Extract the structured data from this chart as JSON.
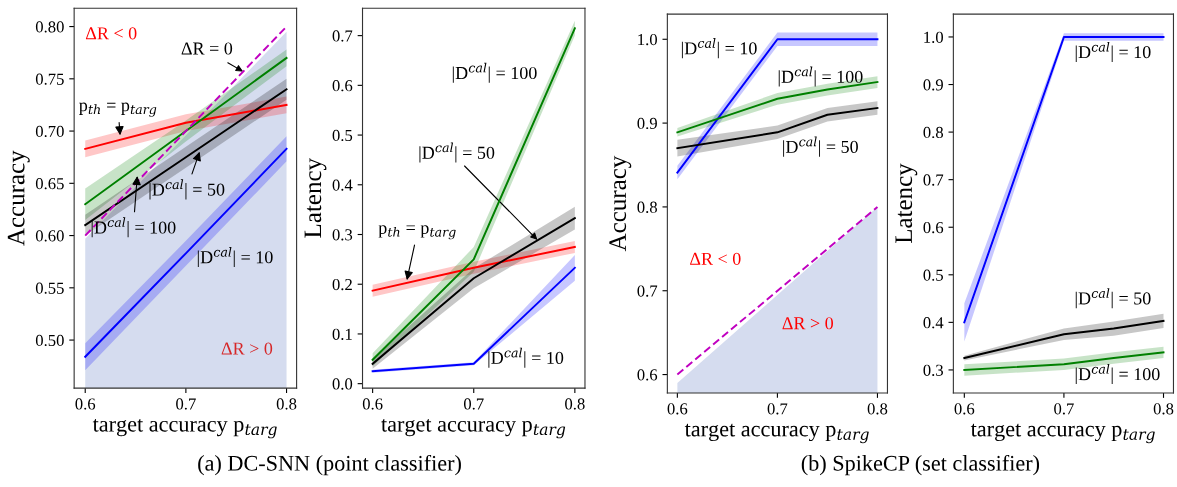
{
  "chart_data": [
    {
      "type": "line",
      "ylabel": "Accuracy",
      "xlabel": "target accuracy p$_{targ}$",
      "xlim": [
        0.589,
        0.81
      ],
      "xticks": [
        0.6,
        0.7,
        0.8
      ],
      "ylim": [
        0.454,
        0.8175
      ],
      "yticks": [
        {
          "value": 0.5,
          "label": "0.50"
        },
        {
          "value": 0.55,
          "label": "0.55"
        },
        {
          "value": 0.6,
          "label": "0.60"
        },
        {
          "value": 0.65,
          "label": "0.65"
        },
        {
          "value": 0.7,
          "label": "0.70"
        },
        {
          "value": 0.75,
          "label": "0.75"
        },
        {
          "value": 0.8,
          "label": "0.80"
        }
      ],
      "grid": false,
      "legend": false,
      "series": [
        {
          "type": "area",
          "color": "#d5dcef",
          "x": [
            0.6,
            0.8
          ],
          "values": [
            0.597,
            0.795
          ]
        },
        {
          "color": "#ff0000",
          "x": [
            0.6,
            0.7,
            0.8
          ],
          "values": [
            0.683,
            0.708,
            0.725
          ],
          "lower": [
            0.675,
            0.7,
            0.717
          ],
          "upper": [
            0.691,
            0.716,
            0.733
          ]
        },
        {
          "color": "#008000",
          "x": [
            0.6,
            0.7,
            0.8
          ],
          "values": [
            0.63,
            0.7,
            0.77
          ],
          "lower": [
            0.615,
            0.69,
            0.762
          ],
          "upper": [
            0.645,
            0.71,
            0.778
          ]
        },
        {
          "color": "#000000",
          "x": [
            0.6,
            0.7,
            0.8
          ],
          "values": [
            0.61,
            0.675,
            0.74
          ],
          "lower": [
            0.6,
            0.665,
            0.73
          ],
          "upper": [
            0.62,
            0.685,
            0.75
          ]
        },
        {
          "color": "#0000ff",
          "x": [
            0.6,
            0.7,
            0.8
          ],
          "values": [
            0.484,
            0.583,
            0.683
          ],
          "lower": [
            0.471,
            0.571,
            0.671
          ],
          "upper": [
            0.497,
            0.595,
            0.695
          ]
        },
        {
          "color": "#c000c0",
          "line_style": "dashed",
          "x": [
            0.6,
            0.8
          ],
          "values": [
            0.6,
            0.8
          ]
        }
      ],
      "annotations": [
        "ΔR < 0",
        "ΔR = 0",
        {
          "text": "p$_{th}$ = p$_{targ}$",
          "x": 0.635,
          "y": 0.692
        },
        {
          "text": "|D$^{cal}$| = 50",
          "x": 0.715,
          "y": 0.684
        },
        {
          "text": "|D$^{cal}$| = 100",
          "x": 0.652,
          "y": 0.661
        },
        "|D$^{cal}$| = 10",
        "ΔR > 0",
        "(a) DC-SNN (point classifier)"
      ]
    },
    {
      "type": "line",
      "ylabel": "Latency",
      "xlabel": "target accuracy p$_{targ}$",
      "xlim": [
        0.59,
        0.81
      ],
      "xticks": [
        0.6,
        0.7,
        0.8
      ],
      "ylim": [
        -0.009,
        0.755
      ],
      "yticks": [
        {
          "value": 0.0,
          "label": "0.0"
        },
        0.1,
        0.2,
        0.3,
        0.4,
        0.5,
        0.6,
        0.7
      ],
      "grid": false,
      "legend": false,
      "series": [
        {
          "color": "#ff0000",
          "x": [
            0.6,
            0.7,
            0.8
          ],
          "values": [
            0.187,
            0.233,
            0.275
          ],
          "lower": [
            0.175,
            0.221,
            0.263
          ],
          "upper": [
            0.199,
            0.245,
            0.287
          ]
        },
        {
          "color": "#008000",
          "x": [
            0.6,
            0.7,
            0.8
          ],
          "values": [
            0.048,
            0.25,
            0.715
          ],
          "lower": [
            0.035,
            0.225,
            0.7
          ],
          "upper": [
            0.061,
            0.275,
            0.73
          ]
        },
        {
          "color": "#000000",
          "x": [
            0.6,
            0.7,
            0.8
          ],
          "values": [
            0.04,
            0.212,
            0.333
          ],
          "lower": [
            0.03,
            0.192,
            0.31
          ],
          "upper": [
            0.05,
            0.232,
            0.356
          ]
        },
        {
          "color": "#0000ff",
          "x": [
            0.6,
            0.7,
            0.8
          ],
          "values": [
            0.025,
            0.04,
            0.233
          ],
          "lower": [
            0.022,
            0.037,
            0.207
          ],
          "upper": [
            0.028,
            0.043,
            0.259
          ]
        }
      ],
      "annotations": [
        "|D$^{cal}$| = 100",
        "|D$^{cal}$| = 50",
        {
          "text": "p$_{th}$ = p$_{targ}$",
          "x": 0.633,
          "y": 0.2
        },
        "|D$^{cal}$| = 10"
      ]
    },
    {
      "type": "line",
      "ylabel": "Accuracy",
      "xlabel": "target accuracy p$_{targ}$",
      "xlim": [
        0.59,
        0.81
      ],
      "xticks": [
        0.6,
        0.7,
        0.8
      ],
      "ylim": [
        0.578,
        1.03
      ],
      "yticks": [
        0.6,
        0.7,
        0.8,
        0.9,
        {
          "value": 1.0,
          "label": "1.0"
        }
      ],
      "grid": false,
      "legend": false,
      "series": [
        {
          "type": "area",
          "color": "#d5dcef",
          "x": [
            0.6,
            0.8
          ],
          "values": [
            0.59,
            0.8
          ]
        },
        {
          "color": "#c000c0",
          "line_style": "dashed",
          "x": [
            0.6,
            0.8
          ],
          "values": [
            0.6,
            0.8
          ]
        },
        {
          "color": "#0000ff",
          "x": [
            0.6,
            0.7,
            0.75,
            0.8
          ],
          "values": [
            0.841,
            1.0,
            1.0,
            1.0
          ],
          "lower": [
            0.833,
            0.992,
            0.992,
            0.992
          ],
          "upper": [
            0.849,
            1.008,
            1.008,
            1.008
          ]
        },
        {
          "color": "#008000",
          "x": [
            0.6,
            0.7,
            0.75,
            0.8
          ],
          "values": [
            0.889,
            0.929,
            0.94,
            0.949
          ],
          "lower": [
            0.884,
            0.922,
            0.933,
            0.942
          ],
          "upper": [
            0.894,
            0.936,
            0.947,
            0.956
          ]
        },
        {
          "color": "#000000",
          "x": [
            0.6,
            0.7,
            0.75,
            0.8
          ],
          "values": [
            0.87,
            0.889,
            0.91,
            0.918
          ],
          "lower": [
            0.86,
            0.881,
            0.902,
            0.91
          ],
          "upper": [
            0.88,
            0.897,
            0.918,
            0.926
          ]
        }
      ],
      "annotations": [
        "|D$^{cal}$| = 10",
        "|D$^{cal}$| = 100",
        "|D$^{cal}$| = 50",
        "ΔR < 0",
        "ΔR > 0",
        "(b) SpikeCP (set classifier)"
      ]
    },
    {
      "type": "line",
      "ylabel": "Latency",
      "xlabel": "target accuracy p$_{targ}$",
      "xlim": [
        0.589,
        0.81
      ],
      "xticks": [
        0.6,
        0.7,
        0.8
      ],
      "ylim": [
        0.2515,
        1.048
      ],
      "yticks": [
        0.3,
        0.4,
        0.5,
        0.6,
        0.7,
        0.8,
        0.9,
        {
          "value": 1.0,
          "label": "1.0"
        }
      ],
      "grid": false,
      "legend": false,
      "series": [
        {
          "color": "#0000ff",
          "x": [
            0.6,
            0.7,
            0.75,
            0.8
          ],
          "values": [
            0.4,
            1.0,
            1.0,
            1.0
          ],
          "lower": [
            0.36,
            0.992,
            0.992,
            0.992
          ],
          "upper": [
            0.44,
            1.008,
            1.008,
            1.008
          ]
        },
        {
          "color": "#000000",
          "x": [
            0.6,
            0.7,
            0.75,
            0.8
          ],
          "values": [
            0.325,
            0.375,
            0.387,
            0.403
          ],
          "lower": [
            0.32,
            0.363,
            0.372,
            0.388
          ],
          "upper": [
            0.33,
            0.387,
            0.402,
            0.418
          ]
        },
        {
          "color": "#008000",
          "x": [
            0.6,
            0.7,
            0.75,
            0.8
          ],
          "values": [
            0.3,
            0.312,
            0.325,
            0.337
          ],
          "lower": [
            0.288,
            0.3,
            0.313,
            0.325
          ],
          "upper": [
            0.312,
            0.324,
            0.337,
            0.349
          ]
        }
      ],
      "annotations": [
        "|D$^{cal}$| = 10",
        "|D$^{cal}$| = 50",
        "|D$^{cal}$| = 100"
      ]
    }
  ]
}
